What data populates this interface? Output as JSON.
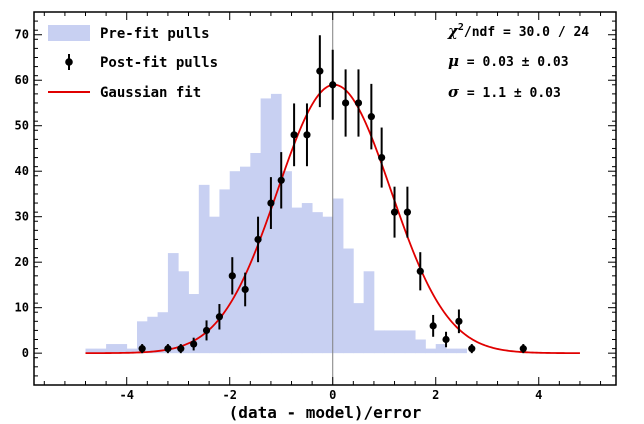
{
  "chart_data": {
    "type": "histogram",
    "xlabel": "(data - model)/error",
    "ylabel": "",
    "xlim": [
      -5.8,
      5.5
    ],
    "ylim": [
      -7,
      75
    ],
    "xticks": [
      -4,
      -2,
      0,
      2,
      4
    ],
    "yticks": [
      0,
      10,
      20,
      30,
      40,
      50,
      60,
      70
    ],
    "grid": false,
    "legend_position": "top-left",
    "colors": {
      "prefit": "#c8d0f2",
      "postfit": "#000000",
      "fit": "#e00000",
      "zero_line": "#808080"
    },
    "legend": {
      "prefit": "Pre-fit pulls",
      "postfit": "Post-fit pulls",
      "fit": "Gaussian fit"
    },
    "stats": {
      "chi2": {
        "symbol": "χ",
        "sup": "2",
        "rest": "/ndf = 30.0 / 24"
      },
      "mu": {
        "symbol": "μ",
        "rest": " = 0.03 ± 0.03"
      },
      "sigma": {
        "symbol": "σ",
        "rest": " = 1.1 ± 0.03"
      }
    },
    "prefit_histogram": {
      "bin_edges": [
        -4.8,
        -4.6,
        -4.4,
        -4.2,
        -4.0,
        -3.8,
        -3.6,
        -3.4,
        -3.2,
        -3.0,
        -2.8,
        -2.6,
        -2.4,
        -2.2,
        -2.0,
        -1.8,
        -1.6,
        -1.4,
        -1.2,
        -1.0,
        -0.8,
        -0.6,
        -0.4,
        -0.2,
        0.0,
        0.2,
        0.4,
        0.6,
        0.8,
        1.0,
        1.2,
        1.4,
        1.6,
        1.8,
        2.0,
        2.2,
        2.4,
        2.6
      ],
      "values": [
        1,
        1,
        2,
        2,
        1,
        7,
        8,
        9,
        22,
        18,
        13,
        37,
        30,
        36,
        40,
        41,
        44,
        56,
        57,
        40,
        32,
        33,
        31,
        30,
        34,
        23,
        11,
        18,
        5,
        5,
        5,
        5,
        3,
        1,
        2,
        1,
        1
      ]
    },
    "postfit_points": {
      "x": [
        -3.7,
        -3.2,
        -2.95,
        -2.7,
        -2.45,
        -2.2,
        -1.95,
        -1.7,
        -1.45,
        -1.2,
        -1.0,
        -0.75,
        -0.5,
        -0.25,
        0.0,
        0.25,
        0.5,
        0.75,
        0.95,
        1.2,
        1.45,
        1.7,
        1.95,
        2.2,
        2.45,
        2.7,
        3.7
      ],
      "y": [
        1,
        1,
        1,
        2,
        5,
        8,
        17,
        14,
        25,
        33,
        38,
        48,
        48,
        62,
        59,
        55,
        55,
        52,
        43,
        31,
        31,
        18,
        6,
        3,
        7,
        1,
        1
      ],
      "yerr": [
        1,
        1,
        1,
        1.4,
        2.2,
        2.8,
        4.1,
        3.7,
        5,
        5.7,
        6.2,
        6.9,
        6.9,
        7.9,
        7.7,
        7.4,
        7.4,
        7.2,
        6.6,
        5.6,
        5.6,
        4.2,
        2.4,
        1.7,
        2.6,
        1,
        1
      ]
    },
    "gaussian_fit": {
      "amplitude": 59,
      "mean": 0.03,
      "sigma": 1.1,
      "x_range": [
        -4.8,
        4.8
      ]
    }
  }
}
